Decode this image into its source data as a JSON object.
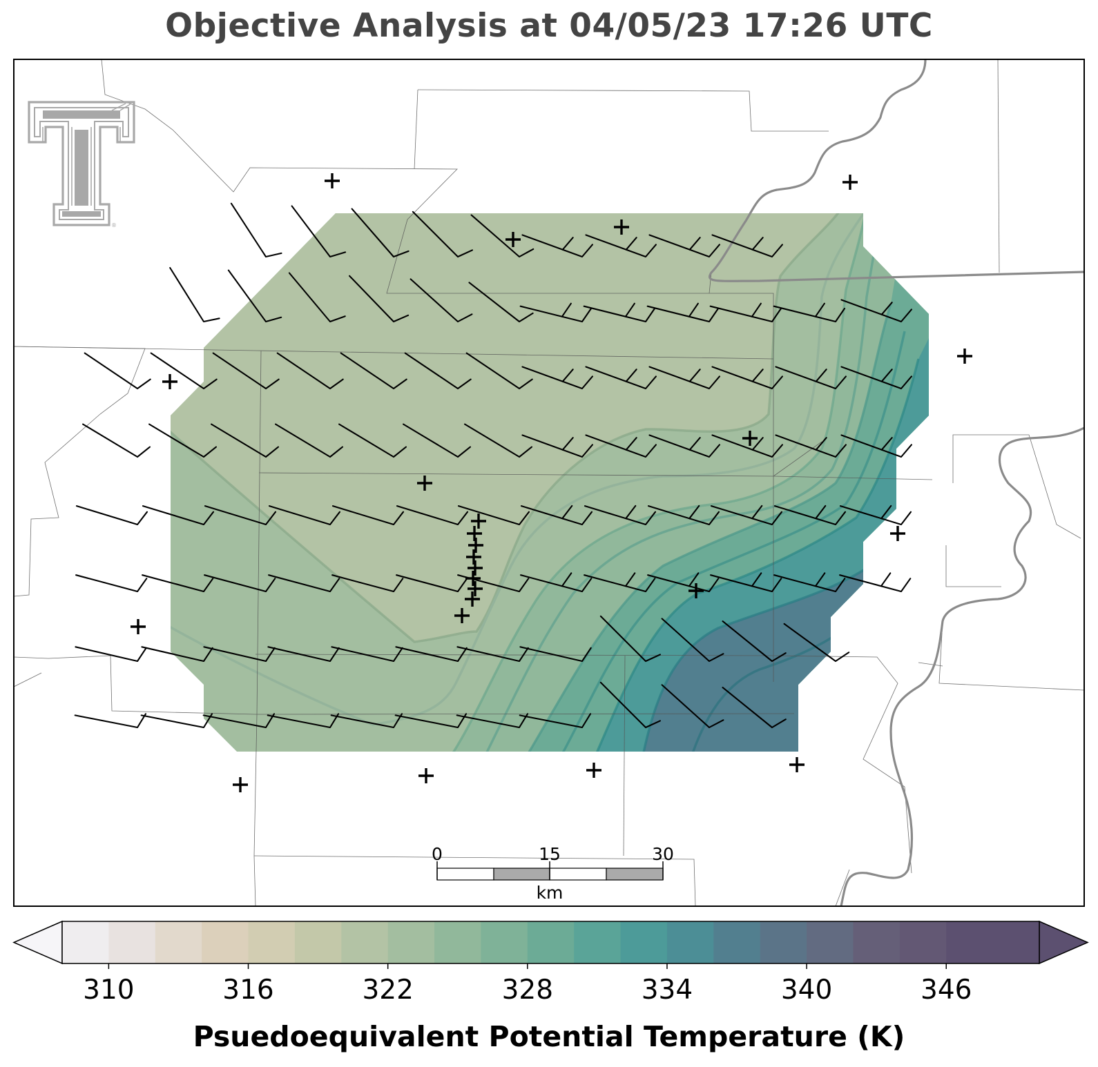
{
  "title": "Objective Analysis at 04/05/23 17:26 UTC",
  "colorbar": {
    "label": "Psuedoequivalent Potential Temperature (K)",
    "ticks": [
      310,
      316,
      322,
      328,
      334,
      340,
      346
    ],
    "min": 308,
    "max": 350,
    "step": 2,
    "colors": [
      "#f6f5f8",
      "#efedef",
      "#e8e2e0",
      "#e2d9cc",
      "#dcd0bb",
      "#d2cdb2",
      "#c3c8a9",
      "#b3c3a5",
      "#a3bea0",
      "#91b89b",
      "#7fb298",
      "#6cab96",
      "#5aa498",
      "#4d9b99",
      "#4c8e96",
      "#527f8f",
      "#5b7488",
      "#626b81",
      "#655f78",
      "#635874",
      "#5c5070"
    ]
  },
  "scalebar": {
    "ticks": [
      "0",
      "15",
      "30"
    ],
    "unit": "km"
  },
  "logo": "texas-tech-double-t-logo"
}
